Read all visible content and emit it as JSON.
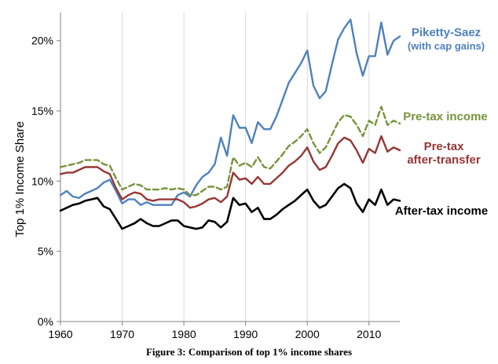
{
  "caption": "Figure 3: Comparison of top 1% income shares",
  "chart_data": {
    "type": "line",
    "title": "",
    "xlabel": "",
    "ylabel": "Top 1% Income Share",
    "xlim": [
      1960,
      2015
    ],
    "ylim": [
      0,
      22
    ],
    "x_ticks": [
      "1960",
      "1970",
      "1980",
      "1990",
      "2000",
      "2010"
    ],
    "y_ticks": [
      "0%",
      "5%",
      "10%",
      "15%",
      "20%"
    ],
    "x_tick_values": [
      1960,
      1970,
      1980,
      1990,
      2000,
      2010
    ],
    "y_tick_values": [
      0,
      5,
      10,
      15,
      20
    ],
    "x": [
      1960,
      1961,
      1962,
      1963,
      1964,
      1965,
      1966,
      1967,
      1968,
      1969,
      1970,
      1971,
      1972,
      1973,
      1974,
      1975,
      1976,
      1977,
      1978,
      1979,
      1980,
      1981,
      1982,
      1983,
      1984,
      1985,
      1986,
      1987,
      1988,
      1989,
      1990,
      1991,
      1992,
      1993,
      1994,
      1995,
      1996,
      1997,
      1998,
      1999,
      2000,
      2001,
      2002,
      2003,
      2004,
      2005,
      2006,
      2007,
      2008,
      2009,
      2010,
      2011,
      2012,
      2013,
      2014,
      2015
    ],
    "series": [
      {
        "name": "Piketty-Saez (with cap gains)",
        "label_lines": [
          "Piketty-Saez",
          "(with cap gains)"
        ],
        "color": "#4F81BD",
        "dash": "solid",
        "values": [
          9.0,
          9.3,
          8.9,
          8.8,
          9.1,
          9.3,
          9.5,
          9.9,
          10.1,
          9.3,
          8.4,
          8.7,
          8.7,
          8.3,
          8.5,
          8.3,
          8.3,
          8.3,
          8.3,
          9.0,
          9.2,
          8.9,
          9.7,
          10.3,
          10.6,
          11.2,
          13.1,
          11.8,
          14.7,
          13.8,
          13.8,
          12.7,
          14.2,
          13.7,
          13.7,
          14.6,
          15.8,
          17.0,
          17.7,
          18.4,
          19.3,
          16.8,
          15.9,
          16.4,
          18.3,
          20.1,
          20.9,
          21.5,
          19.1,
          17.5,
          18.9,
          18.9,
          21.3,
          19.0,
          20.0,
          20.3
        ]
      },
      {
        "name": "Pre-tax income",
        "label_lines": [
          "Pre-tax income"
        ],
        "color": "#77933C",
        "dash": "dashed",
        "values": [
          11.0,
          11.1,
          11.2,
          11.3,
          11.5,
          11.5,
          11.5,
          11.2,
          11.1,
          10.2,
          9.4,
          9.6,
          9.8,
          9.7,
          9.4,
          9.4,
          9.4,
          9.5,
          9.4,
          9.5,
          9.4,
          9.0,
          9.0,
          9.3,
          9.6,
          9.6,
          9.4,
          9.6,
          11.7,
          11.1,
          11.3,
          11.0,
          11.7,
          11.0,
          10.9,
          11.4,
          11.9,
          12.5,
          12.8,
          13.2,
          13.7,
          12.7,
          12.0,
          12.4,
          13.3,
          14.2,
          14.7,
          14.6,
          14.0,
          13.2,
          14.3,
          14.0,
          15.3,
          14.0,
          14.3,
          14.1
        ]
      },
      {
        "name": "Pre-tax after-transfer",
        "label_lines": [
          "Pre-tax",
          "after-transfer"
        ],
        "color": "#953735",
        "dash": "solid",
        "values": [
          10.5,
          10.6,
          10.6,
          10.8,
          11.0,
          11.0,
          11.0,
          10.7,
          10.5,
          9.5,
          8.7,
          9.0,
          9.2,
          9.1,
          8.7,
          8.6,
          8.7,
          8.7,
          8.7,
          8.7,
          8.5,
          8.1,
          8.2,
          8.4,
          8.7,
          8.8,
          8.5,
          8.9,
          10.6,
          10.1,
          10.2,
          9.8,
          10.3,
          9.8,
          9.8,
          10.2,
          10.6,
          11.1,
          11.4,
          11.8,
          12.4,
          11.4,
          10.8,
          11.0,
          11.8,
          12.7,
          13.1,
          12.9,
          12.2,
          11.3,
          12.3,
          12.0,
          13.2,
          12.1,
          12.4,
          12.2
        ]
      },
      {
        "name": "After-tax income",
        "label_lines": [
          "After-tax income"
        ],
        "color": "#000000",
        "dash": "solid",
        "values": [
          7.9,
          8.1,
          8.3,
          8.4,
          8.6,
          8.7,
          8.8,
          8.2,
          8.0,
          7.3,
          6.6,
          6.8,
          7.0,
          7.3,
          7.0,
          6.8,
          6.8,
          7.0,
          7.2,
          7.2,
          6.8,
          6.7,
          6.6,
          6.7,
          7.2,
          7.1,
          6.7,
          7.1,
          8.8,
          8.3,
          8.4,
          7.8,
          8.1,
          7.3,
          7.3,
          7.6,
          8.0,
          8.3,
          8.6,
          9.0,
          9.4,
          8.6,
          8.1,
          8.3,
          8.9,
          9.5,
          9.8,
          9.5,
          8.4,
          7.8,
          8.7,
          8.3,
          9.4,
          8.3,
          8.7,
          8.6
        ]
      }
    ],
    "grid": "vertical",
    "legend": "inline labels at right end of each line"
  }
}
